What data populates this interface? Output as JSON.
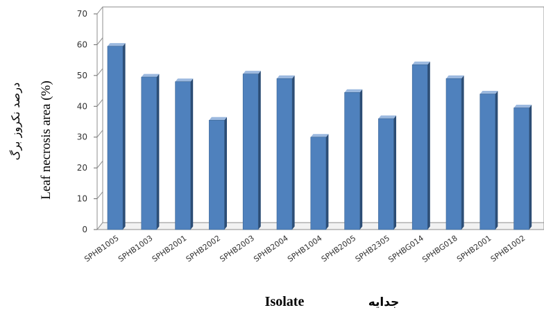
{
  "chart_data": {
    "type": "bar",
    "categories": [
      "SPHB1005",
      "SPHB1003",
      "SPHB2001",
      "SPHB2002",
      "SPHB2003",
      "SPHB2004",
      "SPHB1004",
      "SPHB2005",
      "SPHB2305",
      "SPHBG014",
      "SPHBG018",
      "SPHB2001",
      "SPHB1002"
    ],
    "values": [
      59.5,
      49.5,
      48,
      35.5,
      50.5,
      49,
      30,
      44.5,
      36,
      53.5,
      49,
      44,
      39.5
    ],
    "ylim": [
      0,
      70
    ],
    "yticks": [
      "0",
      "10",
      "20",
      "30",
      "40",
      "50",
      "60",
      "70"
    ],
    "ylabel": "Leaf necrosis area (%)",
    "ylabel_fa": "درصد نکروز برگ",
    "xlabel": "Isolate",
    "xlabel_fa": "جدایه",
    "grid": true,
    "bar_color": "#4f81bd",
    "bar_side_color": "#2c4d75",
    "bar_top_color": "#9cb9df",
    "grid_color": "#8c8c8c"
  }
}
